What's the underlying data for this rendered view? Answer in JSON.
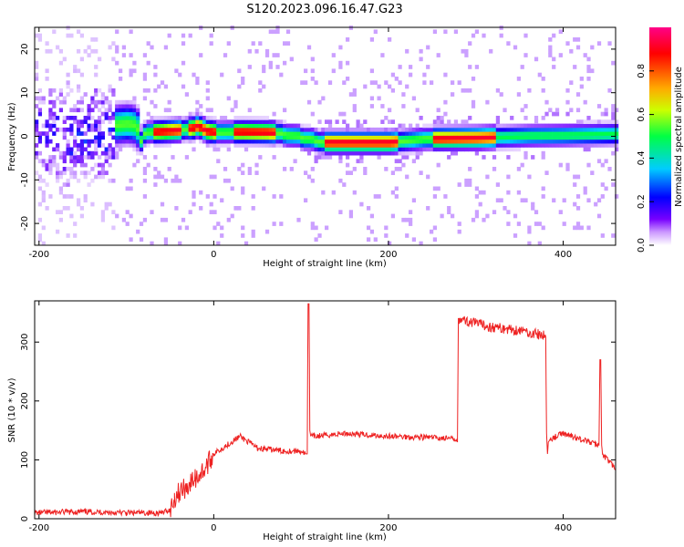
{
  "title": "S120.2023.096.16.47.G23",
  "chart_data": [
    {
      "type": "heatmap",
      "xlabel": "Height of straight line (km)",
      "ylabel": "Frequency (Hz)",
      "xlim": [
        -205,
        460
      ],
      "ylim": [
        -25,
        25
      ],
      "xticks": [
        -200,
        0,
        200,
        400
      ],
      "yticks": [
        20,
        10,
        0,
        -10,
        -20
      ],
      "colorbar": {
        "label": "Normalized spectral amplitude",
        "ticks": [
          "0.0",
          "0.2",
          "0.4",
          "0.6",
          "0.8"
        ],
        "range": [
          0,
          1
        ]
      },
      "ridge_frequency": {
        "x": [
          -205,
          -150,
          -120,
          -100,
          -90,
          -85,
          -80,
          -60,
          -40,
          -25,
          -20,
          -10,
          0,
          30,
          60,
          75,
          80,
          95,
          100,
          110,
          120,
          150,
          200,
          240,
          300,
          360,
          400,
          460
        ],
        "y": [
          2,
          2,
          2,
          2.5,
          2,
          -1.5,
          0.5,
          0.7,
          1,
          1.5,
          2,
          0.8,
          0.5,
          0.6,
          0.5,
          0.3,
          -0.2,
          -0.3,
          -1,
          -1,
          -1.8,
          -1.8,
          -1.8,
          -1,
          -0.8,
          -0.3,
          -0.2,
          0.1
        ]
      },
      "colorscale": [
        "#ffffff",
        "#cc99ff",
        "#6600ff",
        "#0000ff",
        "#00ccff",
        "#00ff66",
        "#ccff00",
        "#ffaa00",
        "#ff0000",
        "#ff0066"
      ]
    },
    {
      "type": "line",
      "xlabel": "Height of straight line (km)",
      "ylabel": "SNR (10 * v/v)",
      "xlim": [
        -205,
        460
      ],
      "ylim": [
        0,
        370
      ],
      "xticks": [
        -200,
        0,
        200,
        400
      ],
      "yticks": [
        0,
        100,
        200,
        300
      ],
      "series": [
        {
          "color": "#ee2222",
          "x": [
            -205,
            -150,
            -100,
            -60,
            -50,
            -45,
            -40,
            -30,
            -20,
            -10,
            0,
            10,
            20,
            30,
            50,
            80,
            100,
            105,
            107,
            108,
            109,
            110,
            111,
            115,
            150,
            200,
            250,
            279,
            280,
            281,
            290,
            320,
            350,
            380,
            381,
            382,
            383,
            385,
            400,
            410,
            420,
            440,
            441,
            442,
            443,
            444,
            445,
            460
          ],
          "y": [
            10,
            12,
            10,
            10,
            15,
            35,
            45,
            55,
            70,
            85,
            110,
            120,
            130,
            140,
            120,
            115,
            115,
            110,
            110,
            365,
            365,
            150,
            140,
            140,
            145,
            140,
            138,
            135,
            340,
            340,
            335,
            325,
            320,
            310,
            145,
            110,
            130,
            135,
            145,
            140,
            135,
            125,
            125,
            270,
            270,
            125,
            110,
            85
          ]
        }
      ]
    }
  ]
}
